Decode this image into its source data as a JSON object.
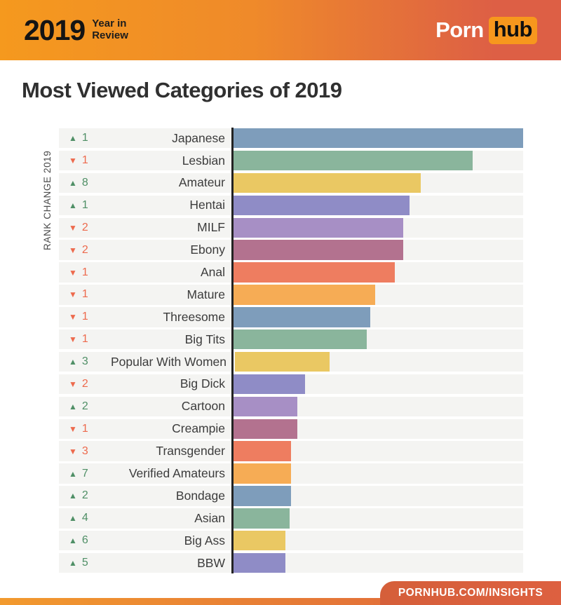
{
  "header": {
    "year": "2019",
    "subtitle_line1": "Year in",
    "subtitle_line2": "Review",
    "logo_porn": "Porn",
    "logo_hub": "hub",
    "bg_gradient_left": "#F5991E",
    "bg_gradient_right": "#DD5F45",
    "logo_hub_bg": "#F7971D"
  },
  "title": "Most Viewed Categories of 2019",
  "chart": {
    "axis_label": "RANK CHANGE 2019",
    "up_glyph": "▲",
    "down_glyph": "▼",
    "up_color": "#4F8F66",
    "down_color": "#ED6A4D",
    "band_bg": "#F4F4F2",
    "axis_line_color": "#232323"
  },
  "chart_data": {
    "type": "bar",
    "orientation": "horizontal",
    "title": "Most Viewed Categories of 2019",
    "axis_label": "RANK CHANGE 2019",
    "value_units": "relative bar length, % of longest bar (no numeric axis shown)",
    "legend": "none",
    "grid": "off",
    "categories": [
      "Japanese",
      "Lesbian",
      "Amateur",
      "Hentai",
      "MILF",
      "Ebony",
      "Anal",
      "Mature",
      "Threesome",
      "Big Tits",
      "Popular With Women",
      "Big Dick",
      "Cartoon",
      "Creampie",
      "Transgender",
      "Verified Amateurs",
      "Bondage",
      "Asian",
      "Big Ass",
      "BBW"
    ],
    "values": [
      100,
      82.5,
      64.6,
      60.7,
      58.7,
      58.5,
      55.8,
      48.8,
      47.3,
      46.1,
      32.8,
      24.8,
      22.1,
      22.1,
      19.9,
      19.9,
      19.9,
      19.4,
      18.0,
      18.0
    ],
    "rank_changes": [
      1,
      -1,
      8,
      1,
      -2,
      -2,
      -1,
      -1,
      -1,
      -1,
      3,
      -2,
      2,
      -1,
      -3,
      7,
      2,
      4,
      6,
      5
    ],
    "bar_colors": [
      "#7E9DBB",
      "#8AB59C",
      "#EAC863",
      "#8F8CC6",
      "#A78FC5",
      "#B3728F",
      "#EE7D60",
      "#F6AC55",
      "#7E9DBB",
      "#8AB59C",
      "#EAC863",
      "#8F8CC6",
      "#A78FC5",
      "#B3728F",
      "#EE7D60",
      "#F6AC55",
      "#7E9DBB",
      "#8AB59C",
      "#EAC863",
      "#8F8CC6"
    ]
  },
  "footer": {
    "link_text": "PORNHUB.COM/INSIGHTS",
    "strip_gradient_left": "#F29A2E",
    "strip_gradient_right": "#DC5F3E"
  }
}
